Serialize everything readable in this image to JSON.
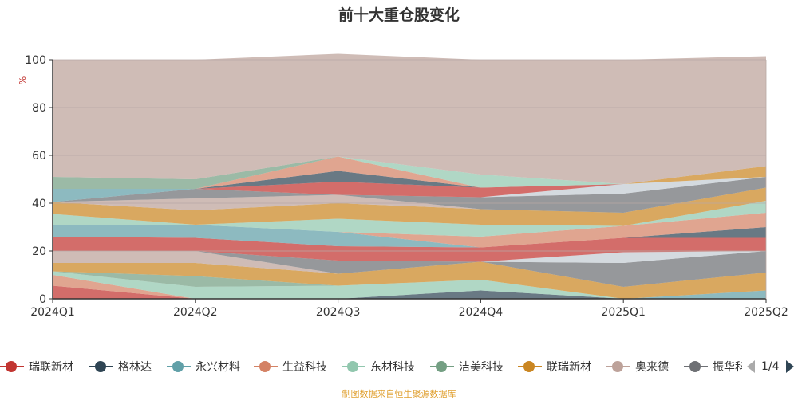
{
  "chart_data": {
    "type": "area",
    "title": "前十大重仓股变化",
    "ylabel": "%",
    "ylim": [
      0,
      100
    ],
    "yticks": [
      0,
      20,
      40,
      60,
      80,
      100
    ],
    "x": [
      "2024Q1",
      "2024Q2",
      "2024Q3",
      "2024Q4",
      "2025Q1",
      "2025Q2"
    ],
    "grid": true,
    "stacked": true,
    "series": [
      {
        "name": "瑞联新材",
        "color": "#c23531",
        "values": [
          5.5,
          0,
          0,
          0,
          0,
          0
        ]
      },
      {
        "name": "格林达",
        "color": "#2f4554",
        "values": [
          0,
          0,
          0,
          3.5,
          0,
          0
        ]
      },
      {
        "name": "永兴材料",
        "color": "#61a0a8",
        "values": [
          0,
          0,
          0,
          0,
          0,
          3.5
        ]
      },
      {
        "name": "生益科技",
        "color": "#d48265",
        "values": [
          4.5,
          0,
          0,
          0,
          0,
          0
        ]
      },
      {
        "name": "东材科技",
        "color": "#91c7ae",
        "values": [
          1.5,
          5,
          5.5,
          4.5,
          0,
          0
        ]
      },
      {
        "name": "洁美科技",
        "color": "#749f83",
        "values": [
          0,
          4.5,
          0,
          0,
          0,
          0
        ]
      },
      {
        "name": "联瑞新材",
        "color": "#ca8622",
        "values": [
          3.5,
          5.5,
          5,
          7.5,
          5,
          7.5
        ]
      },
      {
        "name": "奥来德",
        "color": "#bda29a",
        "values": [
          5,
          5,
          0,
          0,
          0,
          0
        ]
      },
      {
        "name": "振华科技",
        "color": "#6e7074",
        "values": [
          0,
          0,
          5.5,
          0,
          10,
          9
        ]
      },
      {
        "name": "",
        "color": "#c4ccd3",
        "values": [
          0,
          0,
          0,
          0,
          4.5,
          0
        ]
      },
      {
        "name": "",
        "color": "#c23531",
        "values": [
          6,
          5.5,
          6,
          6,
          6,
          5.5
        ]
      },
      {
        "name": "",
        "color": "#2f4554",
        "values": [
          0,
          0,
          0,
          0,
          0,
          4.5
        ]
      },
      {
        "name": "",
        "color": "#61a0a8",
        "values": [
          5,
          5.5,
          6,
          0,
          0,
          0
        ]
      },
      {
        "name": "",
        "color": "#d48265",
        "values": [
          0,
          0,
          0,
          4.5,
          5,
          6
        ]
      },
      {
        "name": "",
        "color": "#91c7ae",
        "values": [
          4.5,
          0,
          5.5,
          5,
          0,
          5
        ]
      },
      {
        "name": "",
        "color": "#ca8622",
        "values": [
          5,
          6,
          6.5,
          6.5,
          5.5,
          5.5
        ]
      },
      {
        "name": "",
        "color": "#bda29a",
        "values": [
          0,
          5,
          3.5,
          0,
          0,
          0
        ]
      },
      {
        "name": "",
        "color": "#6e7074",
        "values": [
          0,
          4,
          0,
          5,
          8,
          4.5
        ]
      },
      {
        "name": "",
        "color": "#c4ccd3",
        "values": [
          0,
          0,
          0,
          0,
          4,
          0
        ]
      },
      {
        "name": "",
        "color": "#c23531",
        "values": [
          0,
          0,
          5.5,
          4,
          0,
          0
        ]
      },
      {
        "name": "",
        "color": "#2f4554",
        "values": [
          0,
          0,
          4.5,
          0,
          0,
          0
        ]
      },
      {
        "name": "",
        "color": "#61a0a8",
        "values": [
          5.5,
          0,
          0,
          0,
          0,
          0
        ]
      },
      {
        "name": "",
        "color": "#d48265",
        "values": [
          0,
          0,
          6,
          0,
          0,
          0
        ]
      },
      {
        "name": "",
        "color": "#91c7ae",
        "values": [
          0,
          0,
          0,
          5.5,
          0,
          0
        ]
      },
      {
        "name": "",
        "color": "#749f83",
        "values": [
          5,
          4,
          0,
          0,
          0,
          0
        ]
      },
      {
        "name": "",
        "color": "#ca8622",
        "values": [
          0,
          0,
          0,
          0,
          0,
          4.5
        ]
      },
      {
        "name": "",
        "color": "#bda29a",
        "values": [
          49,
          50,
          43,
          48,
          52,
          46
        ]
      }
    ]
  },
  "legend": {
    "page": "1/4",
    "items": [
      {
        "name": "瑞联新材",
        "color": "#c23531"
      },
      {
        "name": "格林达",
        "color": "#2f4554"
      },
      {
        "name": "永兴材料",
        "color": "#61a0a8"
      },
      {
        "name": "生益科技",
        "color": "#d48265"
      },
      {
        "name": "东材科技",
        "color": "#91c7ae"
      },
      {
        "name": "洁美科技",
        "color": "#749f83"
      },
      {
        "name": "联瑞新材",
        "color": "#ca8622"
      },
      {
        "name": "奥来德",
        "color": "#bda29a"
      },
      {
        "name": "振华科技",
        "color": "#6e7074"
      }
    ]
  },
  "source_text": "制图数据来自恒生聚源数据库"
}
